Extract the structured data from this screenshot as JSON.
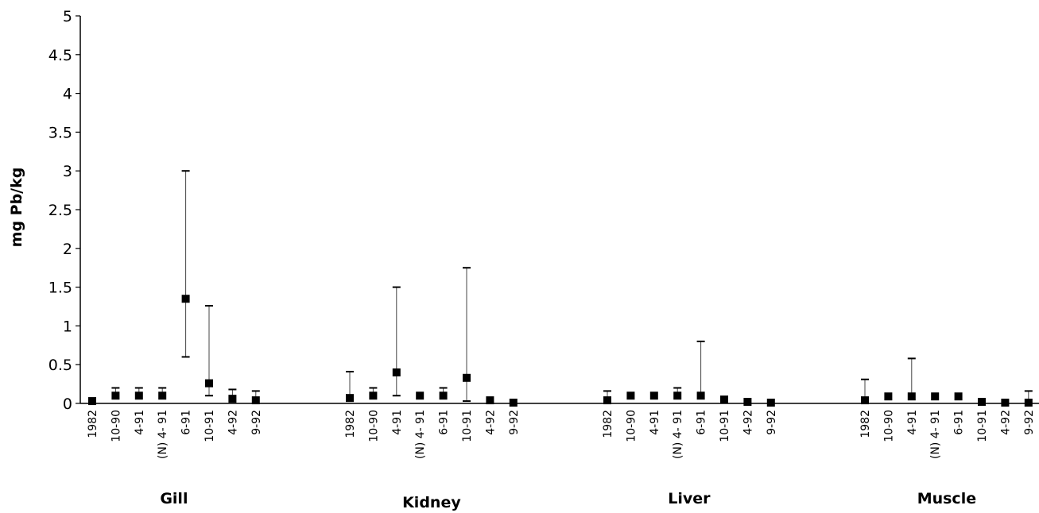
{
  "chart_data": {
    "type": "scatter",
    "title": "",
    "xlabel": "",
    "ylabel": "mg Pb/kg",
    "ylim": [
      0,
      5
    ],
    "yticks": [
      "0",
      "0.5",
      "1",
      "1.5",
      "2",
      "2.5",
      "3",
      "3.5",
      "4",
      "4.5",
      "5"
    ],
    "grid": false,
    "error_bars": true,
    "groups": [
      {
        "name": "Gill",
        "points": [
          {
            "label": "1982",
            "value": 0.03,
            "low": 0.03,
            "high": 0.03
          },
          {
            "label": "10-90",
            "value": 0.1,
            "low": 0.1,
            "high": 0.2
          },
          {
            "label": "4-91",
            "value": 0.1,
            "low": 0.1,
            "high": 0.2
          },
          {
            "label": "(N) 4- 91",
            "value": 0.1,
            "low": 0.1,
            "high": 0.2
          },
          {
            "label": "6-91",
            "value": 1.35,
            "low": 0.6,
            "high": 3.0
          },
          {
            "label": "10-91",
            "value": 0.26,
            "low": 0.1,
            "high": 1.26
          },
          {
            "label": "4-92",
            "value": 0.06,
            "low": 0.06,
            "high": 0.18
          },
          {
            "label": "9-92",
            "value": 0.04,
            "low": 0.04,
            "high": 0.16
          }
        ]
      },
      {
        "name": "Kidney",
        "points": [
          {
            "label": "1982",
            "value": 0.07,
            "low": 0.07,
            "high": 0.41
          },
          {
            "label": "10-90",
            "value": 0.1,
            "low": 0.1,
            "high": 0.2
          },
          {
            "label": "4-91",
            "value": 0.4,
            "low": 0.1,
            "high": 1.5
          },
          {
            "label": "(N) 4- 91",
            "value": 0.1,
            "low": 0.1,
            "high": 0.1
          },
          {
            "label": "6-91",
            "value": 0.1,
            "low": 0.1,
            "high": 0.2
          },
          {
            "label": "10-91",
            "value": 0.33,
            "low": 0.03,
            "high": 1.75
          },
          {
            "label": "4-92",
            "value": 0.04,
            "low": 0.04,
            "high": 0.04
          },
          {
            "label": "9-92",
            "value": 0.01,
            "low": 0.01,
            "high": 0.01
          }
        ]
      },
      {
        "name": "Liver",
        "points": [
          {
            "label": "1982",
            "value": 0.04,
            "low": 0.04,
            "high": 0.16
          },
          {
            "label": "10-90",
            "value": 0.1,
            "low": 0.1,
            "high": 0.1
          },
          {
            "label": "4-91",
            "value": 0.1,
            "low": 0.1,
            "high": 0.1
          },
          {
            "label": "(N) 4- 91",
            "value": 0.1,
            "low": 0.1,
            "high": 0.2
          },
          {
            "label": "6-91",
            "value": 0.1,
            "low": 0.1,
            "high": 0.8
          },
          {
            "label": "10-91",
            "value": 0.05,
            "low": 0.05,
            "high": 0.05
          },
          {
            "label": "4-92",
            "value": 0.02,
            "low": 0.02,
            "high": 0.02
          },
          {
            "label": "9-92",
            "value": 0.01,
            "low": 0.01,
            "high": 0.01
          }
        ]
      },
      {
        "name": "Muscle",
        "points": [
          {
            "label": "1982",
            "value": 0.04,
            "low": 0.04,
            "high": 0.31
          },
          {
            "label": "10-90",
            "value": 0.09,
            "low": 0.09,
            "high": 0.09
          },
          {
            "label": "4-91",
            "value": 0.09,
            "low": 0.09,
            "high": 0.58
          },
          {
            "label": "(N) 4- 91",
            "value": 0.09,
            "low": 0.09,
            "high": 0.09
          },
          {
            "label": "6-91",
            "value": 0.09,
            "low": 0.09,
            "high": 0.09
          },
          {
            "label": "10-91",
            "value": 0.02,
            "low": 0.02,
            "high": 0.02
          },
          {
            "label": "4-92",
            "value": 0.01,
            "low": 0.01,
            "high": 0.01
          },
          {
            "label": "9-92",
            "value": 0.01,
            "low": 0.01,
            "high": 0.16
          }
        ]
      }
    ]
  }
}
